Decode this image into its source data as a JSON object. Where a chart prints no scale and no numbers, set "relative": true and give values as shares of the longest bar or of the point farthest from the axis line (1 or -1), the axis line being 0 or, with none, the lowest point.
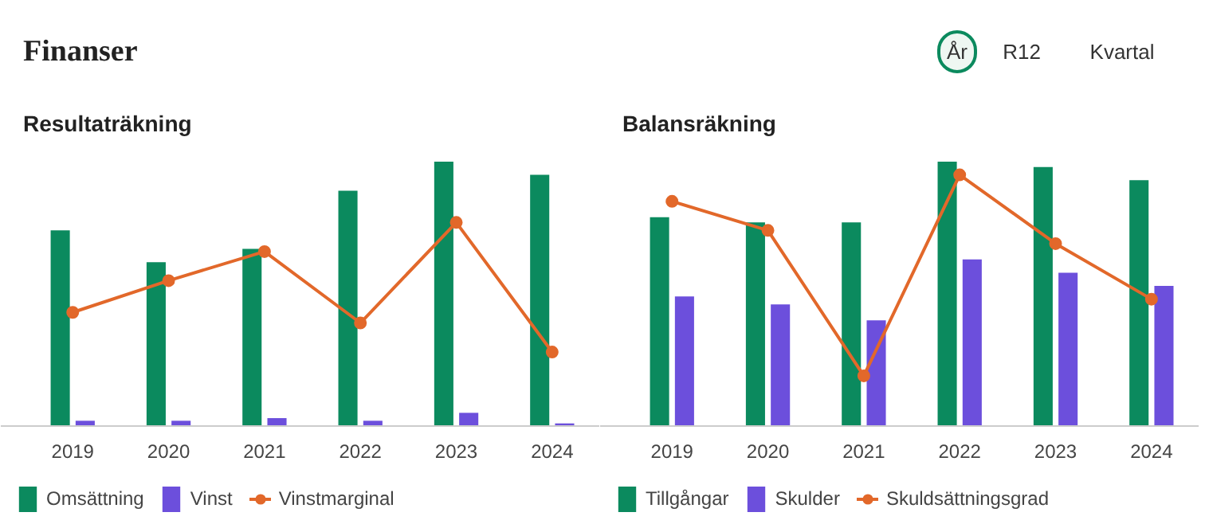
{
  "chart_data": [
    {
      "type": "other",
      "title": "Finanser",
      "annotations": [
        "År",
        "R12",
        "Kvartal"
      ]
    },
    {
      "type": "bar",
      "title": "Resultaträkning",
      "categories": [
        "2019",
        "2020",
        "2021",
        "2022",
        "2023",
        "2024"
      ],
      "relative": true,
      "grid": false,
      "legend": "bottom",
      "series": [
        {
          "name": "Omsättning",
          "color": "#0b8a5e",
          "values": [
            0.74,
            0.62,
            0.67,
            0.89,
            1,
            0.95
          ]
        },
        {
          "name": "Vinst",
          "color": "#6c4fdc",
          "values": [
            0.02,
            0.02,
            0.03,
            0.02,
            0.05,
            0.01
          ]
        },
        {
          "name": "Vinstmarginal",
          "color": "#e2682a",
          "type": "line",
          "marker": "circle",
          "values": [
            0.43,
            0.55,
            0.66,
            0.39,
            0.77,
            0.28
          ]
        }
      ]
    },
    {
      "type": "bar",
      "title": "Balansräkning",
      "categories": [
        "2019",
        "2020",
        "2021",
        "2022",
        "2023",
        "2024"
      ],
      "relative": true,
      "grid": false,
      "legend": "bottom",
      "series": [
        {
          "name": "Tillgångar",
          "color": "#0b8a5e",
          "values": [
            0.79,
            0.77,
            0.77,
            1,
            0.98,
            0.93
          ]
        },
        {
          "name": "Skulder",
          "color": "#6c4fdc",
          "values": [
            0.49,
            0.46,
            0.4,
            0.63,
            0.58,
            0.53
          ]
        },
        {
          "name": "Skuldsättningsgrad",
          "color": "#e2682a",
          "type": "line",
          "marker": "circle",
          "values": [
            0.85,
            0.74,
            0.19,
            0.95,
            0.69,
            0.48
          ]
        }
      ]
    }
  ]
}
